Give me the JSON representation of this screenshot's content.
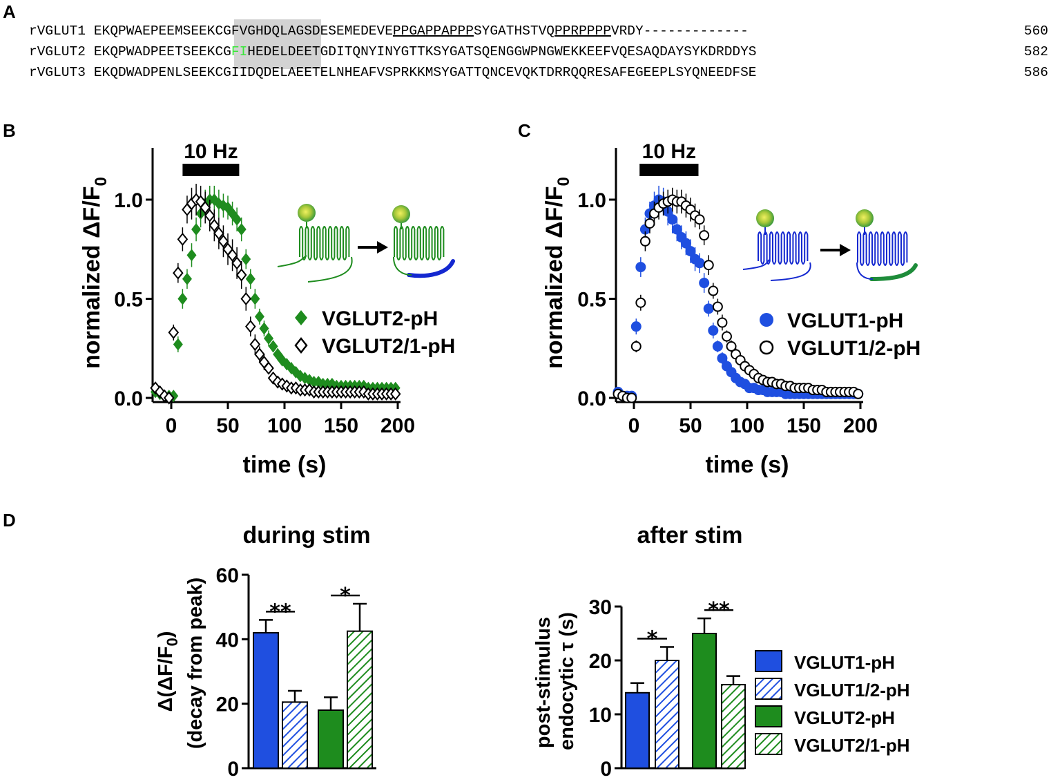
{
  "colors": {
    "vglut1": "#1f4fe0",
    "vglut2": "#1e8c1e",
    "highlight": "#ff33ff",
    "shade": "#d3d3d3",
    "green_text": "#39e639"
  },
  "panel_a": {
    "letter": "A",
    "rows": [
      {
        "name": "rVGLUT1",
        "pre": "EKQPWAEPEEM",
        "shaded": "SEEKCGFV",
        "post": "GHDQLAGSDESEMEDEVE",
        "u1": "PPGAPPAPPP",
        "mid": "SYGATHSTVQ",
        "u2": "PPRPPPP",
        "tail": "VRDY-------------",
        "end": "560"
      },
      {
        "name": "rVGLUT2",
        "pre": "EKQPWADPEET",
        "shaded_a": "SEEKCG",
        "shaded_b": "FI",
        "post": "HEDELDEETGDITQNYINYGTTKSYGATSQENGGWPNGWEKKEEFVQESAQDAYSYKDRDDYS",
        "end": "582"
      },
      {
        "name": "rVGLUT3",
        "pre": "EKQDWADPENL",
        "shaded": "SEEKCGII",
        "post": "DQDELAEETELNHEAFVSPRKKMSYGATTQNCEVQKTDRRQQRESAFEGEEPLSYQNEEDFSE",
        "end": "586"
      }
    ]
  },
  "chart_data": [
    {
      "panel": "B",
      "type": "scatter",
      "ylabel": "normalized ΔF/F",
      "ylabel_sub": "0",
      "xlabel": "time (s)",
      "stim_label": "10 Hz",
      "stim_range": [
        10,
        60
      ],
      "xlim": [
        -15,
        200
      ],
      "ylim": [
        0,
        1.2
      ],
      "xticks": [
        "0",
        "50",
        "100",
        "150",
        "200"
      ],
      "yticks": [
        "0.0",
        "0.5",
        "1.0"
      ],
      "series": [
        {
          "name": "VGLUT2-pH",
          "marker": "filled-diamond",
          "color": "#1e8c1e",
          "x": [
            -14,
            -10,
            -6,
            -2,
            2,
            6,
            10,
            14,
            18,
            22,
            26,
            30,
            34,
            38,
            42,
            46,
            50,
            54,
            58,
            62,
            66,
            70,
            74,
            78,
            82,
            86,
            90,
            94,
            98,
            102,
            106,
            110,
            114,
            118,
            122,
            126,
            130,
            134,
            138,
            142,
            146,
            150,
            154,
            158,
            162,
            166,
            170,
            174,
            178,
            182,
            186,
            190,
            194,
            198
          ],
          "y": [
            0.03,
            0.02,
            0.01,
            0.01,
            0.01,
            0.27,
            0.5,
            0.6,
            0.72,
            0.85,
            0.93,
            0.98,
            1.0,
            1.0,
            0.98,
            0.97,
            0.96,
            0.93,
            0.9,
            0.85,
            0.7,
            0.6,
            0.5,
            0.41,
            0.35,
            0.3,
            0.26,
            0.22,
            0.19,
            0.17,
            0.15,
            0.13,
            0.11,
            0.1,
            0.09,
            0.08,
            0.08,
            0.07,
            0.07,
            0.07,
            0.06,
            0.06,
            0.06,
            0.06,
            0.06,
            0.06,
            0.06,
            0.05,
            0.05,
            0.05,
            0.05,
            0.05,
            0.05,
            0.05
          ],
          "err": [
            0.02,
            0.02,
            0.02,
            0.02,
            0.02,
            0.04,
            0.05,
            0.05,
            0.06,
            0.06,
            0.07,
            0.07,
            0.07,
            0.07,
            0.07,
            0.06,
            0.06,
            0.06,
            0.06,
            0.06,
            0.05,
            0.05,
            0.05,
            0.04,
            0.04,
            0.04,
            0.03,
            0.03,
            0.03,
            0.03,
            0.03,
            0.02,
            0.02,
            0.02,
            0.02,
            0.02,
            0.02,
            0.02,
            0.02,
            0.02,
            0.02,
            0.02,
            0.02,
            0.02,
            0.02,
            0.02,
            0.02,
            0.02,
            0.02,
            0.02,
            0.02,
            0.02,
            0.02,
            0.02
          ]
        },
        {
          "name": "VGLUT2/1-pH",
          "marker": "open-diamond",
          "color": "#000000",
          "x": [
            -14,
            -10,
            -6,
            -2,
            2,
            6,
            10,
            14,
            18,
            22,
            26,
            30,
            34,
            38,
            42,
            46,
            50,
            54,
            58,
            62,
            66,
            70,
            74,
            78,
            82,
            86,
            90,
            94,
            98,
            102,
            106,
            110,
            114,
            118,
            122,
            126,
            130,
            134,
            138,
            142,
            146,
            150,
            154,
            158,
            162,
            166,
            170,
            174,
            178,
            182,
            186,
            190,
            194,
            198
          ],
          "y": [
            0.05,
            0.03,
            0.01,
            0.0,
            0.33,
            0.63,
            0.8,
            0.95,
            0.98,
            1.0,
            0.99,
            0.96,
            0.92,
            0.87,
            0.83,
            0.79,
            0.75,
            0.72,
            0.68,
            0.62,
            0.5,
            0.36,
            0.27,
            0.22,
            0.18,
            0.15,
            0.1,
            0.08,
            0.07,
            0.06,
            0.05,
            0.05,
            0.04,
            0.04,
            0.04,
            0.03,
            0.03,
            0.03,
            0.03,
            0.03,
            0.03,
            0.03,
            0.03,
            0.03,
            0.03,
            0.03,
            0.03,
            0.02,
            0.02,
            0.02,
            0.02,
            0.02,
            0.02,
            0.02
          ],
          "err": [
            0.02,
            0.02,
            0.02,
            0.02,
            0.04,
            0.05,
            0.06,
            0.07,
            0.08,
            0.08,
            0.08,
            0.08,
            0.08,
            0.08,
            0.08,
            0.08,
            0.08,
            0.08,
            0.08,
            0.07,
            0.06,
            0.05,
            0.05,
            0.04,
            0.04,
            0.03,
            0.03,
            0.03,
            0.02,
            0.02,
            0.02,
            0.02,
            0.02,
            0.02,
            0.02,
            0.02,
            0.02,
            0.02,
            0.02,
            0.02,
            0.02,
            0.02,
            0.02,
            0.02,
            0.02,
            0.02,
            0.02,
            0.02,
            0.02,
            0.02,
            0.02,
            0.02,
            0.02,
            0.02
          ]
        }
      ]
    },
    {
      "panel": "C",
      "type": "scatter",
      "ylabel": "normalized ΔF/F",
      "ylabel_sub": "0",
      "xlabel": "time (s)",
      "stim_label": "10 Hz",
      "stim_range": [
        5,
        57
      ],
      "xlim": [
        -15,
        200
      ],
      "ylim": [
        0,
        1.2
      ],
      "xticks": [
        "0",
        "50",
        "100",
        "150",
        "200"
      ],
      "yticks": [
        "0.0",
        "0.5",
        "1.0"
      ],
      "series": [
        {
          "name": "VGLUT1-pH",
          "marker": "filled-circle",
          "color": "#1f4fe0",
          "x": [
            -14,
            -10,
            -6,
            -2,
            2,
            6,
            10,
            14,
            18,
            22,
            26,
            30,
            34,
            38,
            42,
            46,
            50,
            54,
            58,
            62,
            66,
            70,
            74,
            78,
            82,
            86,
            90,
            94,
            98,
            102,
            106,
            110,
            114,
            118,
            122,
            126,
            130,
            134,
            138,
            142,
            146,
            150,
            154,
            158,
            162,
            166,
            170,
            174,
            178,
            182,
            186,
            190,
            194,
            198
          ],
          "y": [
            0.03,
            0.01,
            0.01,
            0.01,
            0.36,
            0.66,
            0.85,
            0.93,
            0.97,
            1.0,
            0.99,
            0.94,
            0.9,
            0.85,
            0.81,
            0.78,
            0.74,
            0.7,
            0.68,
            0.58,
            0.45,
            0.34,
            0.26,
            0.2,
            0.16,
            0.13,
            0.1,
            0.08,
            0.07,
            0.05,
            0.05,
            0.04,
            0.04,
            0.03,
            0.03,
            0.03,
            0.03,
            0.02,
            0.02,
            0.02,
            0.02,
            0.02,
            0.02,
            0.02,
            0.02,
            0.02,
            0.02,
            0.02,
            0.02,
            0.02,
            0.02,
            0.02,
            0.02,
            0.02
          ],
          "err": [
            0.02,
            0.02,
            0.02,
            0.02,
            0.04,
            0.05,
            0.06,
            0.06,
            0.07,
            0.07,
            0.07,
            0.07,
            0.07,
            0.06,
            0.06,
            0.06,
            0.06,
            0.06,
            0.05,
            0.05,
            0.04,
            0.04,
            0.03,
            0.03,
            0.03,
            0.02,
            0.02,
            0.02,
            0.02,
            0.02,
            0.02,
            0.02,
            0.02,
            0.02,
            0.02,
            0.02,
            0.02,
            0.02,
            0.02,
            0.02,
            0.02,
            0.02,
            0.02,
            0.02,
            0.02,
            0.02,
            0.02,
            0.02,
            0.02,
            0.02,
            0.02,
            0.02,
            0.02,
            0.02
          ]
        },
        {
          "name": "VGLUT1/2-pH",
          "marker": "open-circle",
          "color": "#000000",
          "x": [
            -14,
            -10,
            -6,
            -2,
            2,
            6,
            10,
            14,
            18,
            22,
            26,
            30,
            34,
            38,
            42,
            46,
            50,
            54,
            58,
            62,
            66,
            70,
            74,
            78,
            82,
            86,
            90,
            94,
            98,
            102,
            106,
            110,
            114,
            118,
            122,
            126,
            130,
            134,
            138,
            142,
            146,
            150,
            154,
            158,
            162,
            166,
            170,
            174,
            178,
            182,
            186,
            190,
            194,
            198
          ],
          "y": [
            0.02,
            0.01,
            0.0,
            0.0,
            0.26,
            0.48,
            0.79,
            0.88,
            0.93,
            0.96,
            0.98,
            0.99,
            1.0,
            0.99,
            0.99,
            0.97,
            0.95,
            0.92,
            0.9,
            0.82,
            0.67,
            0.54,
            0.46,
            0.38,
            0.31,
            0.26,
            0.22,
            0.19,
            0.16,
            0.14,
            0.12,
            0.1,
            0.09,
            0.08,
            0.08,
            0.07,
            0.07,
            0.06,
            0.06,
            0.05,
            0.05,
            0.05,
            0.05,
            0.04,
            0.04,
            0.04,
            0.03,
            0.03,
            0.03,
            0.03,
            0.03,
            0.03,
            0.03,
            0.02
          ],
          "err": [
            0.02,
            0.02,
            0.02,
            0.02,
            0.03,
            0.04,
            0.05,
            0.05,
            0.06,
            0.06,
            0.06,
            0.06,
            0.06,
            0.06,
            0.06,
            0.06,
            0.06,
            0.06,
            0.05,
            0.05,
            0.05,
            0.04,
            0.04,
            0.04,
            0.03,
            0.03,
            0.03,
            0.03,
            0.03,
            0.02,
            0.02,
            0.02,
            0.02,
            0.02,
            0.02,
            0.02,
            0.02,
            0.02,
            0.02,
            0.02,
            0.02,
            0.02,
            0.02,
            0.02,
            0.02,
            0.02,
            0.02,
            0.02,
            0.02,
            0.02,
            0.02,
            0.02,
            0.02,
            0.02
          ]
        }
      ]
    },
    {
      "panel": "D-left",
      "type": "bar",
      "title": "during stim",
      "ylabel_line1": "Δ(ΔF/F",
      "ylabel_sub": "0",
      "ylabel_line1_end": ")",
      "ylabel_line2": "(decay from peak)",
      "ylim": [
        0,
        60
      ],
      "yticks": [
        "0",
        "20",
        "40",
        "60"
      ],
      "categories": [
        "VGLUT1-pH",
        "VGLUT1/2-pH",
        "VGLUT2-pH",
        "VGLUT2/1-pH"
      ],
      "values": [
        42,
        20.5,
        18,
        42.5
      ],
      "errors": [
        4,
        3.5,
        4,
        8.5
      ],
      "significance": [
        {
          "pair": [
            0,
            1
          ],
          "label": "**"
        },
        {
          "pair": [
            2,
            3
          ],
          "label": "*"
        }
      ]
    },
    {
      "panel": "D-right",
      "type": "bar",
      "title": "after stim",
      "ylabel_line1": "post-stimulus",
      "ylabel_line2": "endocytic τ (s)",
      "ylim": [
        0,
        30
      ],
      "yticks": [
        "0",
        "10",
        "20",
        "30"
      ],
      "categories": [
        "VGLUT1-pH",
        "VGLUT1/2-pH",
        "VGLUT2-pH",
        "VGLUT2/1-pH"
      ],
      "values": [
        14,
        20,
        25,
        15.5
      ],
      "errors": [
        1.8,
        2.5,
        2.8,
        1.6
      ],
      "significance": [
        {
          "pair": [
            0,
            1
          ],
          "label": "*"
        },
        {
          "pair": [
            2,
            3
          ],
          "label": "**"
        }
      ],
      "legend": [
        "VGLUT1-pH",
        "VGLUT1/2-pH",
        "VGLUT2-pH",
        "VGLUT2/1-pH"
      ]
    }
  ],
  "panel_letters": {
    "b": "B",
    "c": "C",
    "d": "D"
  }
}
